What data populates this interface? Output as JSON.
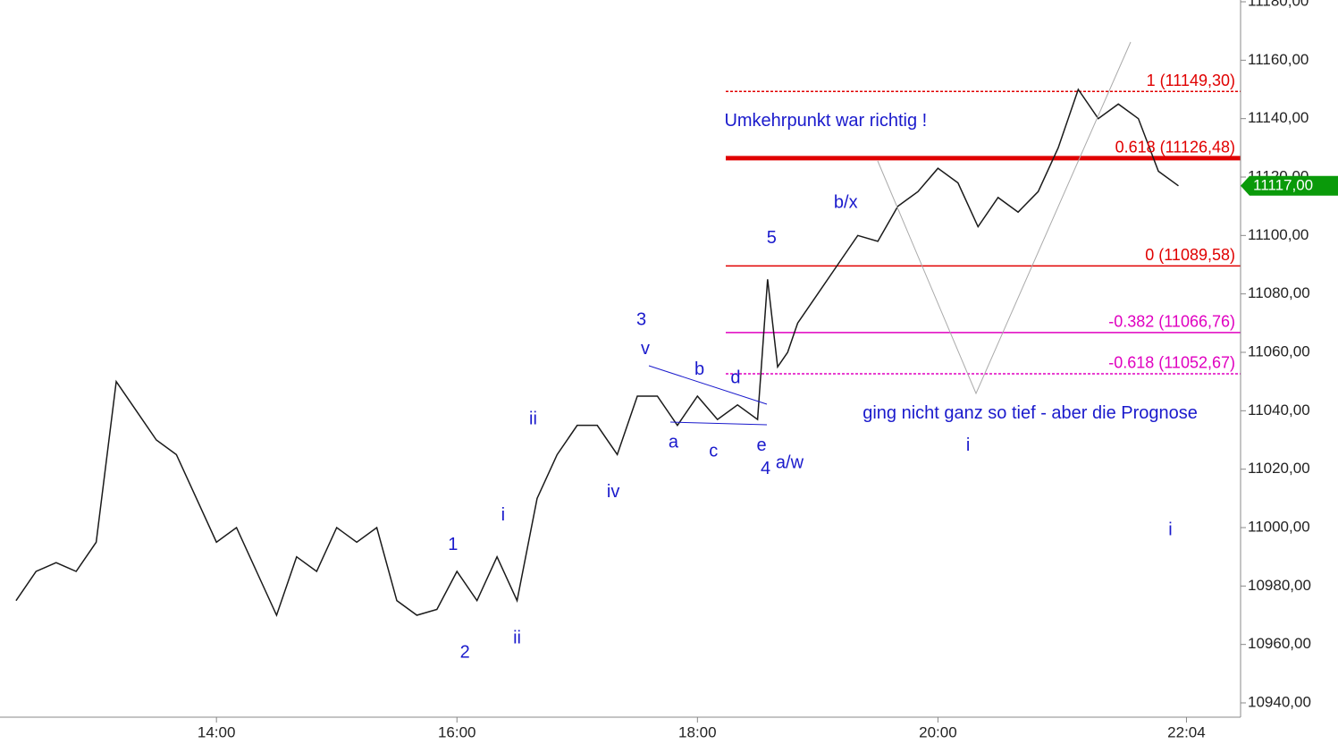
{
  "chart_data": {
    "type": "line",
    "color": "#1a1a1a",
    "x": [
      740,
      750,
      760,
      770,
      780,
      790,
      800,
      810,
      820,
      830,
      840,
      850,
      860,
      870,
      880,
      890,
      900,
      910,
      920,
      930,
      940,
      950,
      960,
      970,
      980,
      990,
      1000,
      1010,
      1020,
      1030,
      1040,
      1050,
      1060,
      1070,
      1080,
      1090,
      1100,
      1110,
      1115,
      1120,
      1125,
      1130,
      1140,
      1150,
      1160,
      1170,
      1180,
      1190,
      1200,
      1210,
      1220,
      1230,
      1240,
      1250,
      1260,
      1270,
      1280,
      1290,
      1300,
      1310,
      1320
    ],
    "values": [
      10975,
      10985,
      10988,
      10985,
      10995,
      11050,
      11040,
      11030,
      11025,
      11010,
      10995,
      11000,
      10985,
      10970,
      10990,
      10985,
      11000,
      10995,
      11000,
      10975,
      10970,
      10972,
      10985,
      10975,
      10990,
      10975,
      11010,
      11025,
      11035,
      11035,
      11025,
      11045,
      11045,
      11035,
      11045,
      11037,
      11042,
      11037,
      11085,
      11055,
      11060,
      11070,
      11080,
      11090,
      11100,
      11098,
      11110,
      11115,
      11123,
      11118,
      11103,
      11113,
      11108,
      11115,
      11130,
      11150,
      11140,
      11145,
      11140,
      11122,
      11117
    ],
    "xlim": [
      732,
      1351
    ],
    "ylim": [
      10940,
      11180
    ],
    "xticks": [
      {
        "value": 840,
        "label": "14:00"
      },
      {
        "value": 960,
        "label": "16:00"
      },
      {
        "value": 1080,
        "label": "18:00"
      },
      {
        "value": 1200,
        "label": "20:00"
      },
      {
        "value": 1324,
        "label": "22:04"
      }
    ],
    "yticks": [
      {
        "value": 10940,
        "label": "10940,00"
      },
      {
        "value": 10960,
        "label": "10960,00"
      },
      {
        "value": 10980,
        "label": "10980,00"
      },
      {
        "value": 11000,
        "label": "11000,00"
      },
      {
        "value": 11020,
        "label": "11020,00"
      },
      {
        "value": 11040,
        "label": "11040,00"
      },
      {
        "value": 11060,
        "label": "11060,00"
      },
      {
        "value": 11080,
        "label": "11080,00"
      },
      {
        "value": 11100,
        "label": "11100,00"
      },
      {
        "value": 11120,
        "label": "11120,00"
      },
      {
        "value": 11140,
        "label": "11140,00"
      },
      {
        "value": 11160,
        "label": "11160,00"
      },
      {
        "value": 11180,
        "label": "11180,00"
      }
    ],
    "levels": [
      {
        "label": "1 (11149,30)",
        "value": 11149.3,
        "color": "#e00000",
        "dash": true,
        "thick": false
      },
      {
        "label": "0.618 (11126,48)",
        "value": 11126.48,
        "color": "#e00000",
        "dash": false,
        "thick": true
      },
      {
        "label": "0 (11089,58)",
        "value": 11089.58,
        "color": "#e00000",
        "dash": false,
        "thick": false
      },
      {
        "label": "-0.382 (11066,76)",
        "value": 11066.76,
        "color": "#e000c0",
        "dash": false,
        "thick": false
      },
      {
        "label": "-0.618 (11052,67)",
        "value": 11052.67,
        "color": "#e000c0",
        "dash": true,
        "thick": false
      }
    ],
    "last_price": {
      "label": "11117,00",
      "value": 11117,
      "color": "#0a9a0a"
    },
    "annotations": [
      {
        "text": "1",
        "x": 958,
        "y": 10994
      },
      {
        "text": "2",
        "x": 964,
        "y": 10957
      },
      {
        "text": "i",
        "x": 983,
        "y": 11004
      },
      {
        "text": "ii",
        "x": 990,
        "y": 10962
      },
      {
        "text": "ii",
        "x": 998,
        "y": 11037
      },
      {
        "text": "iv",
        "x": 1038,
        "y": 11012
      },
      {
        "text": "3",
        "x": 1052,
        "y": 11071
      },
      {
        "text": "v",
        "x": 1054,
        "y": 11061
      },
      {
        "text": "a",
        "x": 1068,
        "y": 11029
      },
      {
        "text": "b",
        "x": 1081,
        "y": 11054
      },
      {
        "text": "c",
        "x": 1088,
        "y": 11026
      },
      {
        "text": "d",
        "x": 1099,
        "y": 11051
      },
      {
        "text": "e",
        "x": 1112,
        "y": 11028
      },
      {
        "text": "4",
        "x": 1114,
        "y": 11020
      },
      {
        "text": "a/w",
        "x": 1126,
        "y": 11022
      },
      {
        "text": "5",
        "x": 1117,
        "y": 11099
      },
      {
        "text": "b/x",
        "x": 1154,
        "y": 11111
      },
      {
        "text": "i",
        "x": 1215,
        "y": 11028
      },
      {
        "text": "i",
        "x": 1316,
        "y": 10999
      },
      {
        "text": "Umkehrpunkt war richtig !",
        "x": 1144,
        "y": 11139
      },
      {
        "text": "ging nicht ganz so tief - aber die Prognose",
        "x": 1246,
        "y": 11039
      }
    ]
  }
}
